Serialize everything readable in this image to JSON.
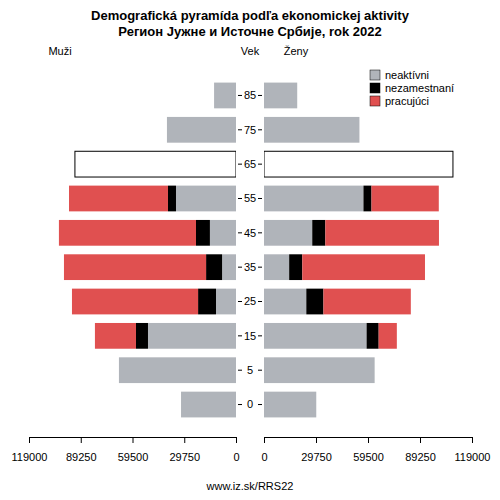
{
  "chart_data": {
    "type": "bar",
    "orientation": "horizontal",
    "stacked": true,
    "title": "Demografická pyramída podľa ekonomickej aktivity",
    "subtitle": "Регион Јужне и Источне Србије, rok 2022",
    "y_label": "Vek",
    "groups": [
      "Muži",
      "Ženy"
    ],
    "categories": [
      "0",
      "5",
      "15",
      "25",
      "35",
      "45",
      "55",
      "65",
      "75",
      "85"
    ],
    "xlim": [
      0,
      119000
    ],
    "xticks": [
      0,
      29750,
      59500,
      89250,
      119000
    ],
    "legend": "top-right",
    "annotations": [
      "www.iz.sk/RRS22"
    ],
    "series": [
      {
        "name": "neaktívni",
        "color": "#b0b4ba",
        "values": [
          [
            31600,
            67300,
            50600,
            11500,
            8000,
            15000,
            34500,
            null,
            39700,
            12600
          ],
          [
            29900,
            63300,
            58700,
            24200,
            14400,
            27600,
            56900,
            null,
            54600,
            19000
          ]
        ]
      },
      {
        "name": "nezamestnaní",
        "color": "#000000",
        "values": [
          [
            null,
            null,
            6900,
            10300,
            9200,
            8000,
            4600,
            null,
            null,
            null
          ],
          [
            null,
            null,
            6900,
            9800,
            7500,
            7500,
            4600,
            null,
            null,
            null
          ]
        ]
      },
      {
        "name": "pracujúci",
        "color": "#e05050",
        "values": [
          [
            null,
            null,
            23600,
            72500,
            81700,
            78800,
            56900,
            null,
            null,
            null
          ],
          [
            null,
            null,
            10400,
            50000,
            70200,
            65000,
            38500,
            null,
            null,
            null
          ]
        ]
      },
      {
        "color": "#ffffff",
        "values": [
          [
            null,
            null,
            null,
            null,
            null,
            null,
            null,
            92600,
            null,
            null
          ],
          [
            null,
            null,
            null,
            null,
            null,
            null,
            null,
            108100,
            null,
            null
          ]
        ]
      }
    ]
  }
}
